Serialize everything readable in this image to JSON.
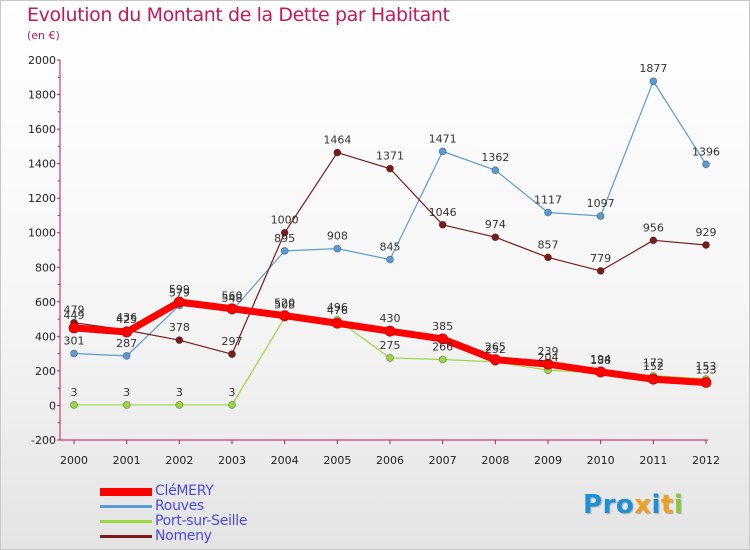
{
  "chart_data": {
    "type": "line",
    "title": "Evolution du Montant de la Dette par Habitant",
    "subtitle": "(en €)",
    "categories": [
      "2000",
      "2001",
      "2002",
      "2003",
      "2004",
      "2005",
      "2006",
      "2007",
      "2008",
      "2009",
      "2010",
      "2011",
      "2012"
    ],
    "ylim": [
      -200,
      2000
    ],
    "yticks": [
      -200,
      0,
      200,
      400,
      600,
      800,
      1000,
      1200,
      1400,
      1600,
      1800,
      2000
    ],
    "grid": false,
    "legend_position": "bottom-left",
    "series": [
      {
        "name": "Rouves",
        "color": "#5b9bd5",
        "values": [
          301,
          287,
          579,
          548,
          895,
          908,
          845,
          1471,
          1362,
          1117,
          1097,
          1877,
          1396
        ]
      },
      {
        "name": "Nomeny",
        "color": "#7b1a1a",
        "values": [
          479,
          436,
          378,
          297,
          1000,
          1464,
          1371,
          1046,
          974,
          857,
          779,
          956,
          929
        ]
      },
      {
        "name": "Port-sur-Seille",
        "color": "#9ad840",
        "values": [
          3,
          3,
          3,
          3,
          508,
          496,
          275,
          266,
          252,
          204,
          188,
          172,
          153
        ]
      },
      {
        "name": "CléMERY",
        "color": "#ff0000",
        "values": [
          449,
          425,
          599,
          560,
          520,
          476,
          430,
          385,
          265,
          239,
          194,
          152,
          133
        ]
      }
    ]
  },
  "legend": [
    {
      "name": "CléMERY",
      "color": "#ff0000"
    },
    {
      "name": "Rouves",
      "color": "#5b9bd5"
    },
    {
      "name": "Port-sur-Seille",
      "color": "#9ad840"
    },
    {
      "name": "Nomeny",
      "color": "#7b1a1a"
    }
  ],
  "logo": {
    "text": "Proxiti",
    "letters": [
      {
        "ch": "P",
        "color": "#1f8fd6"
      },
      {
        "ch": "r",
        "color": "#1f8fd6"
      },
      {
        "ch": "o",
        "color": "#1f8fd6"
      },
      {
        "ch": "x",
        "color": "#f0a020"
      },
      {
        "ch": "i",
        "color": "#1f8fd6"
      },
      {
        "ch": "t",
        "color": "#f0a020"
      },
      {
        "ch": "i",
        "color": "#8cc63f"
      }
    ]
  }
}
